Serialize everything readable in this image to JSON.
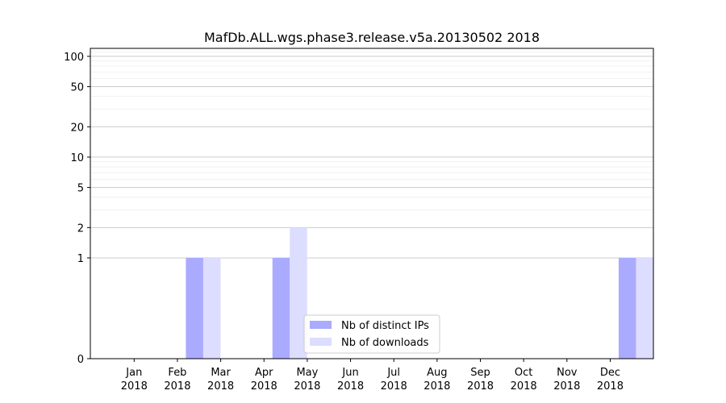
{
  "chart_data": {
    "type": "bar",
    "title": "MafDb.ALL.wgs.phase3.release.v5a.20130502 2018",
    "xlabel": "",
    "ylabel": "",
    "y_scale": "symlog",
    "ylim": [
      0,
      120
    ],
    "y_ticks": [
      {
        "value": 0,
        "label": "0"
      },
      {
        "value": 1,
        "label": "1"
      },
      {
        "value": 2,
        "label": "2"
      },
      {
        "value": 5,
        "label": "5"
      },
      {
        "value": 10,
        "label": "10"
      },
      {
        "value": 20,
        "label": "20"
      },
      {
        "value": 50,
        "label": "50"
      },
      {
        "value": 100,
        "label": "100"
      }
    ],
    "categories": [
      {
        "month": "Jan",
        "year": "2018"
      },
      {
        "month": "Feb",
        "year": "2018"
      },
      {
        "month": "Mar",
        "year": "2018"
      },
      {
        "month": "Apr",
        "year": "2018"
      },
      {
        "month": "May",
        "year": "2018"
      },
      {
        "month": "Jun",
        "year": "2018"
      },
      {
        "month": "Jul",
        "year": "2018"
      },
      {
        "month": "Aug",
        "year": "2018"
      },
      {
        "month": "Sep",
        "year": "2018"
      },
      {
        "month": "Oct",
        "year": "2018"
      },
      {
        "month": "Nov",
        "year": "2018"
      },
      {
        "month": "Dec",
        "year": "2018"
      }
    ],
    "series": [
      {
        "name": "Nb of distinct IPs",
        "color": "#aaaaff",
        "values": [
          0,
          1,
          0,
          1,
          0,
          0,
          0,
          0,
          0,
          0,
          0,
          1
        ]
      },
      {
        "name": "Nb of downloads",
        "color": "#ddddff",
        "values": [
          0,
          1,
          0,
          2,
          0,
          0,
          0,
          0,
          0,
          0,
          0,
          1
        ]
      }
    ],
    "grid": true,
    "legend_position": "lower-center"
  }
}
